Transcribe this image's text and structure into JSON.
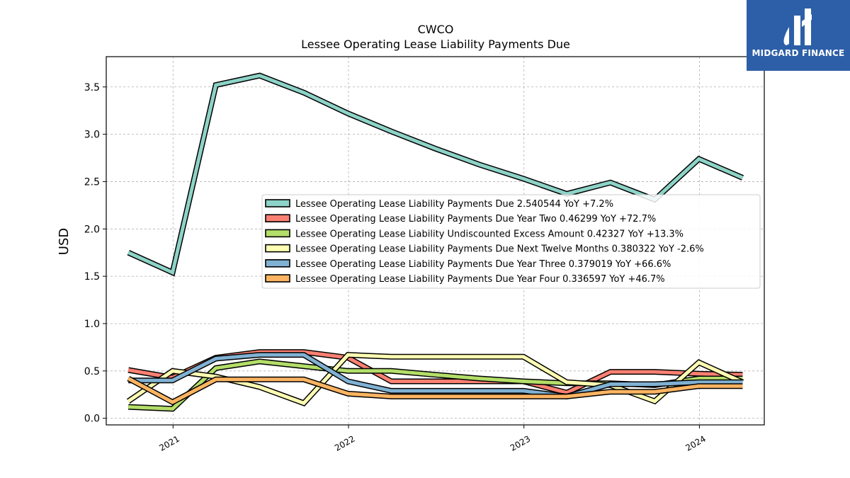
{
  "logo": {
    "text": "MIDGARD FINANCE",
    "color": "#2d5fa8"
  },
  "chart_data": {
    "type": "line",
    "title": "CWCO",
    "subtitle": "Lessee Operating Lease Liability Payments Due",
    "xlabel": "",
    "ylabel": "USD",
    "xlim": [
      "2020-08-15",
      "2024-05-15"
    ],
    "ylim": [
      -0.07,
      3.82
    ],
    "yticks": [
      0.0,
      0.5,
      1.0,
      1.5,
      2.0,
      2.5,
      3.0,
      3.5
    ],
    "ytick_labels": [
      "0.0",
      "0.5",
      "1.0",
      "1.5",
      "2.0",
      "2.5",
      "3.0",
      "3.5"
    ],
    "xticks": [
      "2021-01-01",
      "2022-01-01",
      "2023-01-01",
      "2024-01-01"
    ],
    "xtick_labels": [
      "2021",
      "2022",
      "2023",
      "2024"
    ],
    "grid": true,
    "legend_position": "center-right",
    "x": [
      "2020-09-30",
      "2020-12-31",
      "2021-03-31",
      "2021-06-30",
      "2021-09-30",
      "2021-12-31",
      "2022-03-31",
      "2022-06-30",
      "2022-09-30",
      "2022-12-31",
      "2023-03-31",
      "2023-06-30",
      "2023-09-30",
      "2023-12-31",
      "2024-03-31"
    ],
    "series": [
      {
        "name": "Lessee Operating Lease Liability Payments Due",
        "legend": "Lessee Operating Lease Liability Payments Due  2.540544 YoY +7.2%",
        "color": "#8dd3c7",
        "values": [
          1.75,
          1.54,
          3.52,
          3.62,
          3.44,
          3.22,
          3.03,
          2.85,
          2.68,
          2.53,
          2.37,
          2.49,
          2.31,
          2.74,
          2.54
        ]
      },
      {
        "name": "Lessee Operating Lease Liability Payments Due Year Two",
        "legend": "Lessee Operating Lease Liability Payments Due Year Two  0.46299 YoY +72.7%",
        "color": "#fb8072",
        "values": [
          0.51,
          0.43,
          0.64,
          0.7,
          0.7,
          0.64,
          0.39,
          0.39,
          0.39,
          0.39,
          0.27,
          0.49,
          0.49,
          0.47,
          0.46
        ]
      },
      {
        "name": "Lessee Operating Lease Liability Undiscounted Excess Amount",
        "legend": "Lessee Operating Lease Liability Undiscounted Excess Amount  0.42327 YoY +13.3%",
        "color": "#b3de69",
        "values": [
          0.12,
          0.1,
          0.53,
          0.6,
          0.55,
          0.5,
          0.5,
          0.46,
          0.42,
          0.39,
          0.37,
          0.37,
          0.35,
          0.42,
          0.42
        ]
      },
      {
        "name": "Lessee Operating Lease Liability Payments Due Next Twelve Months",
        "legend": "Lessee Operating Lease Liability Payments Due Next Twelve Months  0.380322 YoY -2.6%",
        "color": "#ffffb3",
        "values": [
          0.18,
          0.5,
          0.44,
          0.33,
          0.16,
          0.67,
          0.65,
          0.65,
          0.65,
          0.65,
          0.38,
          0.35,
          0.18,
          0.59,
          0.38
        ]
      },
      {
        "name": "Lessee Operating Lease Liability Payments Due Year Three",
        "legend": "Lessee Operating Lease Liability Payments Due Year Three  0.379019 YoY +66.6%",
        "color": "#80b1d3",
        "values": [
          0.4,
          0.4,
          0.63,
          0.67,
          0.67,
          0.39,
          0.29,
          0.29,
          0.29,
          0.29,
          0.23,
          0.36,
          0.36,
          0.38,
          0.38
        ]
      },
      {
        "name": "Lessee Operating Lease Liability Payments Due Year Four",
        "legend": "Lessee Operating Lease Liability Payments Due Year Four  0.336597 YoY +46.7%",
        "color": "#fdb462",
        "values": [
          0.42,
          0.17,
          0.41,
          0.41,
          0.41,
          0.26,
          0.23,
          0.23,
          0.23,
          0.23,
          0.23,
          0.28,
          0.28,
          0.34,
          0.34
        ]
      }
    ]
  }
}
